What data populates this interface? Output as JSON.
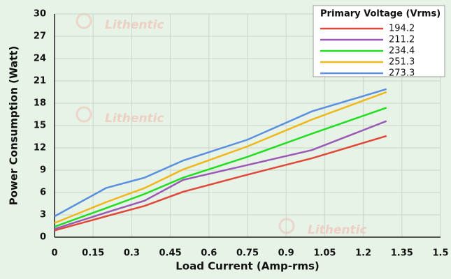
{
  "chart_data": {
    "type": "line",
    "xlabel": "Load Current (Amp-rms)",
    "ylabel": "Power Consumption (Watt)",
    "legend_title": "Primary Voltage (Vrms)",
    "legend": "top-right",
    "watermark": "Lithentic",
    "grid": true,
    "x": [
      0,
      0.2,
      0.35,
      0.5,
      0.75,
      1.0,
      1.29
    ],
    "xlim": [
      0,
      1.5
    ],
    "xticks": [
      0,
      0.15,
      0.3,
      0.45,
      0.6,
      0.75,
      0.9,
      1.05,
      1.2,
      1.35,
      1.5
    ],
    "ylim": [
      0,
      30
    ],
    "yticks": [
      0,
      3,
      6,
      9,
      12,
      15,
      18,
      21,
      24,
      27,
      30
    ],
    "series": [
      {
        "name": "194.2",
        "color": "#e0483a",
        "values": [
          0.9,
          2.8,
          4.2,
          6.1,
          8.4,
          10.6,
          13.6
        ]
      },
      {
        "name": "211.2",
        "color": "#9b59b6",
        "values": [
          1.1,
          3.3,
          4.9,
          7.7,
          9.7,
          11.7,
          15.6
        ]
      },
      {
        "name": "234.4",
        "color": "#22dd22",
        "values": [
          1.4,
          3.9,
          5.8,
          8.0,
          10.8,
          13.9,
          17.4
        ]
      },
      {
        "name": "251.3",
        "color": "#f0b71c",
        "values": [
          1.9,
          4.7,
          6.6,
          9.1,
          12.2,
          15.8,
          19.5
        ]
      },
      {
        "name": "273.3",
        "color": "#5b8fe0",
        "values": [
          2.8,
          6.6,
          8.0,
          10.3,
          13.1,
          16.9,
          19.9
        ]
      }
    ]
  }
}
